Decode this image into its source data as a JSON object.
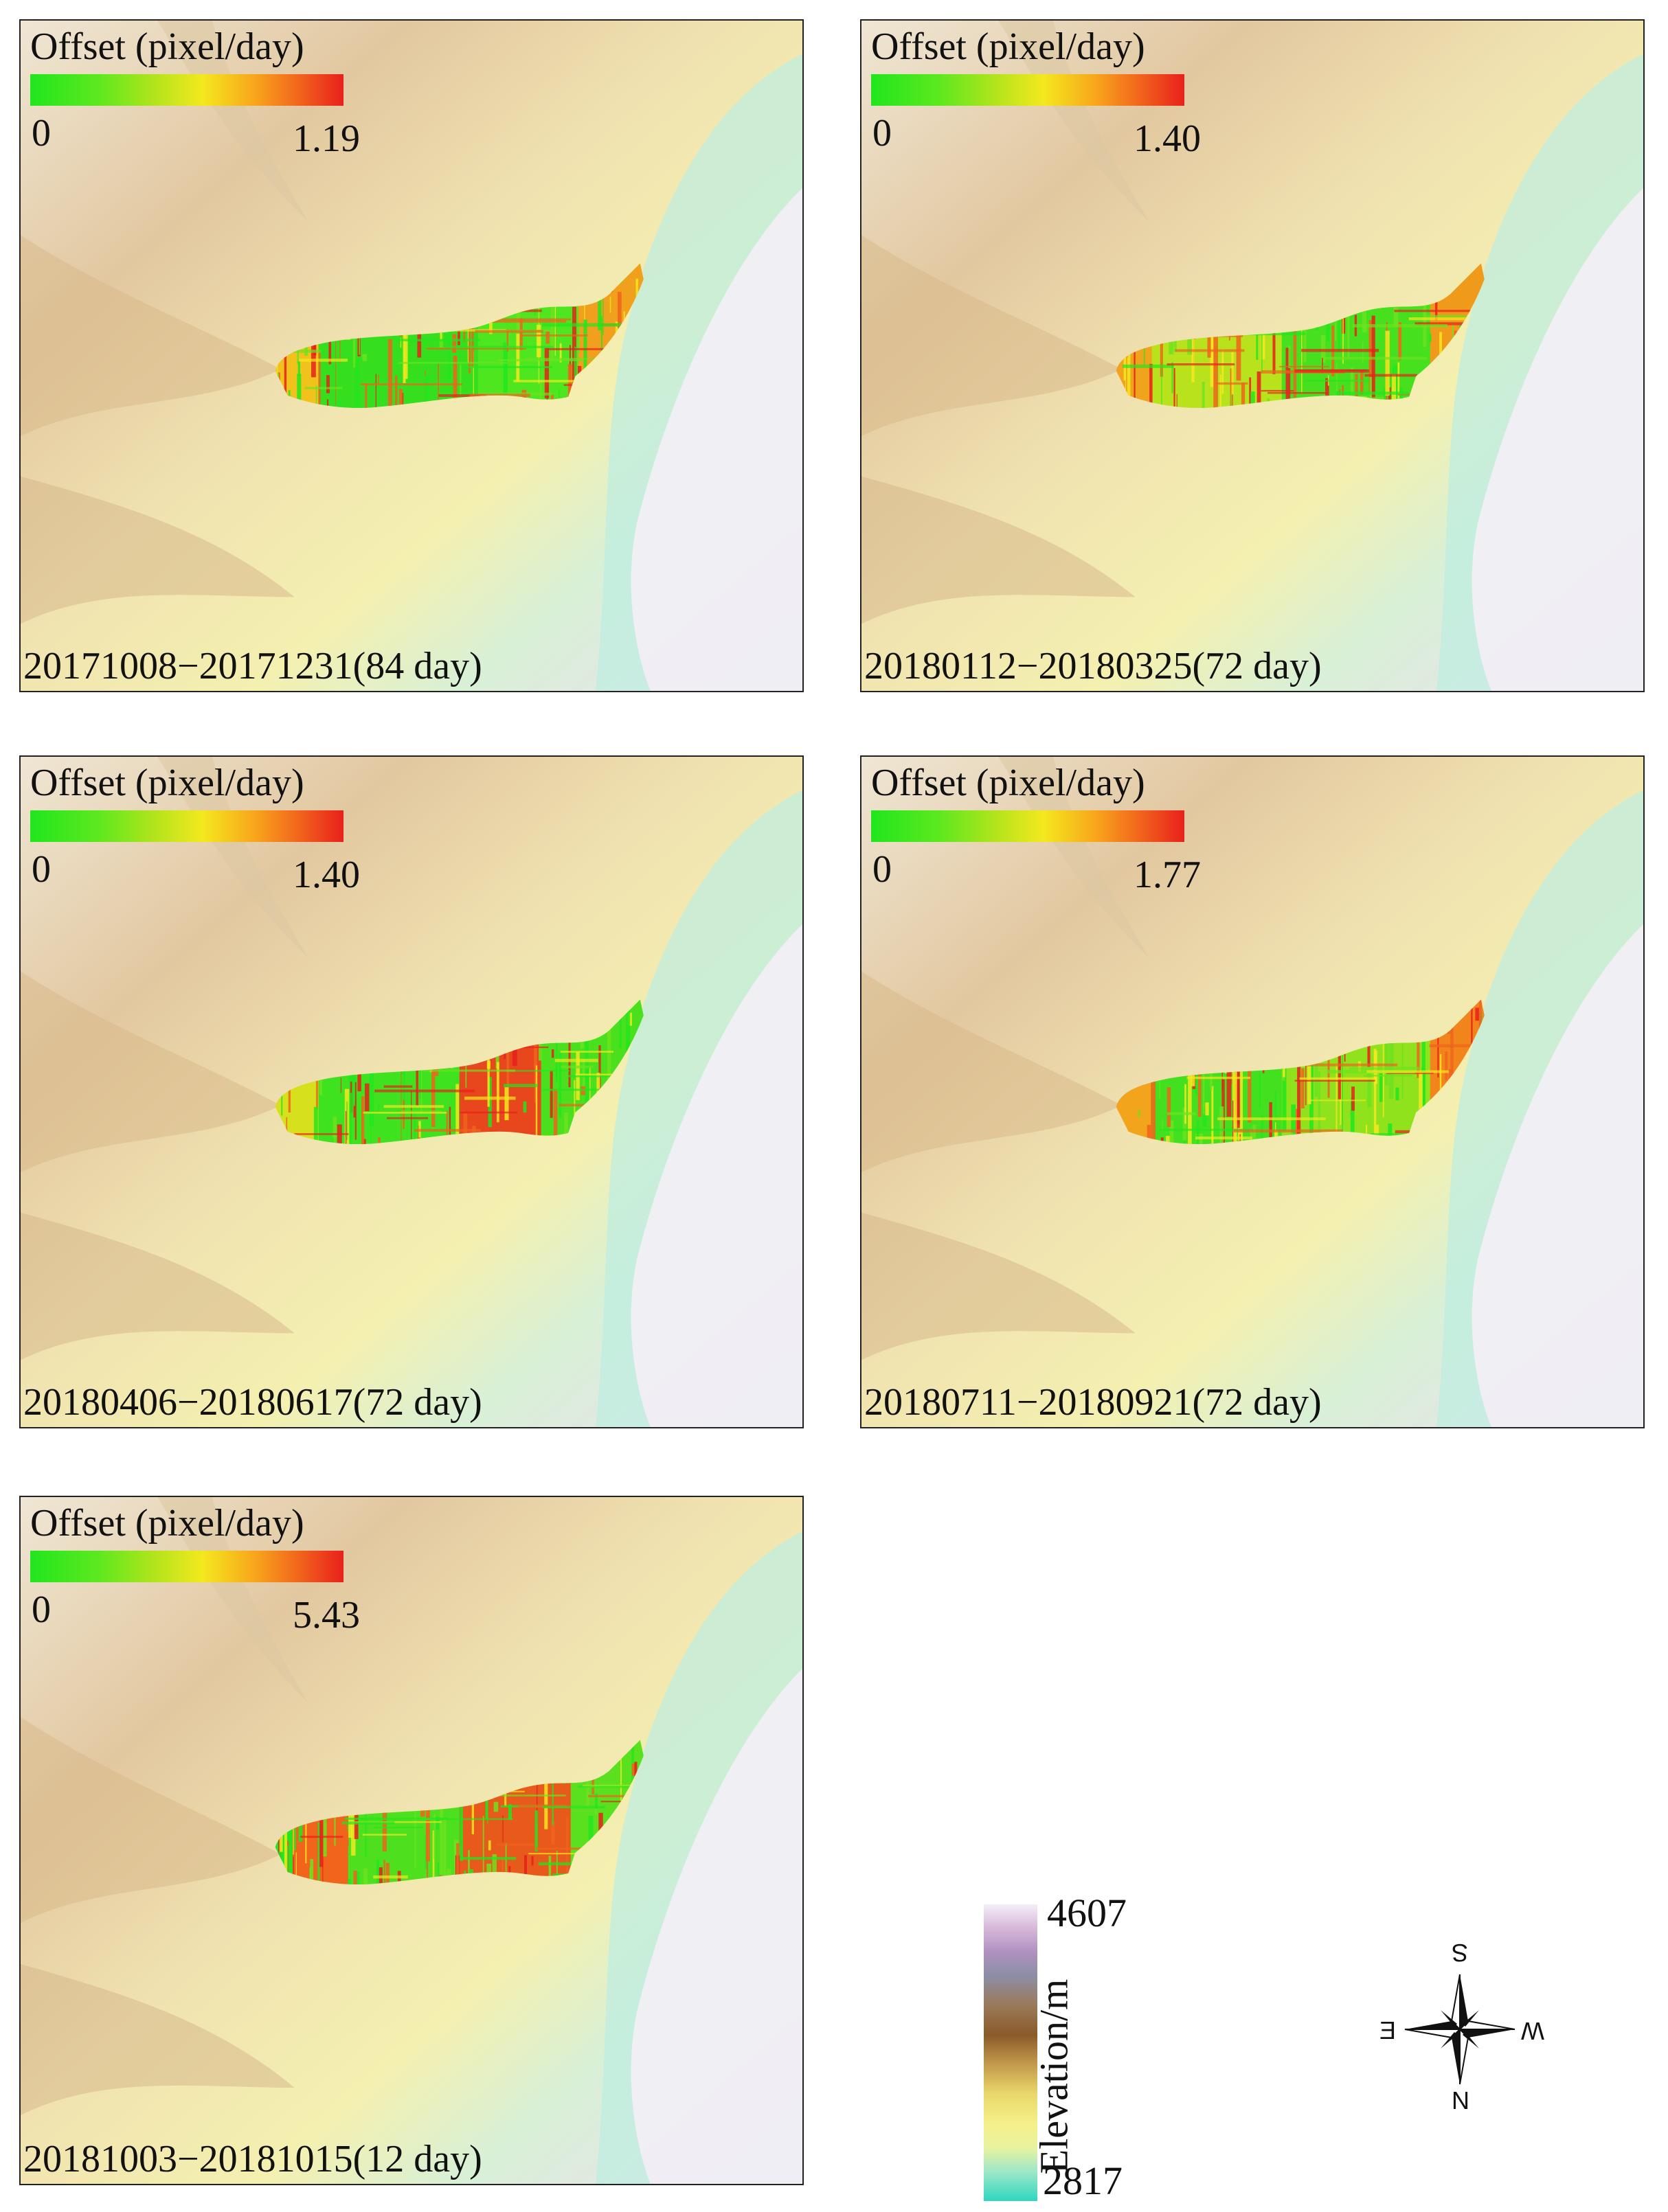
{
  "panels": [
    {
      "legend_title": "Offset (pixel/day)",
      "legend_min": "0",
      "legend_max": "1.19",
      "date": "20171008−20171231(84 day)",
      "offset_max": 1.19,
      "pattern": "p1"
    },
    {
      "legend_title": "Offset (pixel/day)",
      "legend_min": "0",
      "legend_max": "1.40",
      "date": "20180112−20180325(72 day)",
      "offset_max": 1.4,
      "pattern": "p2"
    },
    {
      "legend_title": "Offset (pixel/day)",
      "legend_min": "0",
      "legend_max": "1.40",
      "date": "20180406−20180617(72 day)",
      "offset_max": 1.4,
      "pattern": "p3"
    },
    {
      "legend_title": "Offset (pixel/day)",
      "legend_min": "0",
      "legend_max": "1.77",
      "date": "20180711−20180921(72 day)",
      "offset_max": 1.77,
      "pattern": "p4"
    },
    {
      "legend_title": "Offset (pixel/day)",
      "legend_min": "0",
      "legend_max": "5.43",
      "date": "20181003−20181015(12 day)",
      "offset_max": 5.43,
      "pattern": "p5"
    }
  ],
  "elevation_legend": {
    "title": "Elevation/m",
    "max": "4607",
    "min": "2817"
  },
  "compass": {
    "top": "S",
    "right": "W",
    "bottom": "N",
    "left": "E"
  },
  "colors": {
    "offset_low": "#21e61e",
    "offset_mid": "#f4e81e",
    "offset_high": "#e8201c",
    "elev_low": "#2fd6bf",
    "elev_high": "#f3eef8"
  }
}
